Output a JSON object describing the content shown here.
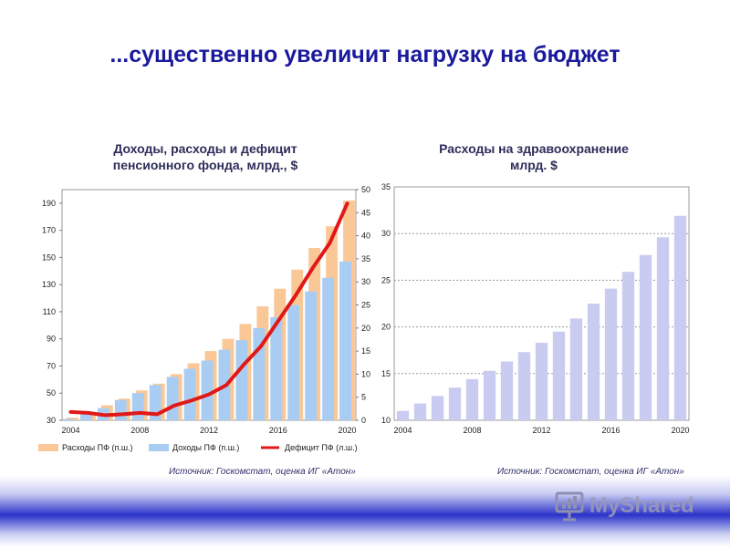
{
  "slide_title": "...существенно увеличит нагрузку на бюджет",
  "left_title_line1": "Доходы, расходы и дефицит",
  "left_title_line2": "пенсионного фонда, млрд., $",
  "right_title_line1": "Расходы на здравоохранение",
  "right_title_line2": "млрд.  $",
  "left_source": "Источник: Госкомстат, оценка ИГ «Атон»",
  "right_source": "Источник: Госкомстат, оценка ИГ «Атон»",
  "logo_text": "MyShared",
  "colors": {
    "title": "#1a1a9c",
    "expenses": "#f9c896",
    "income": "#a9cdf2",
    "deficit": "#e01818",
    "health": "#c9cbf0"
  },
  "chart_data": [
    {
      "type": "bar",
      "years": [
        2004,
        2005,
        2006,
        2007,
        2008,
        2009,
        2010,
        2011,
        2012,
        2013,
        2014,
        2015,
        2016,
        2017,
        2018,
        2019,
        2020
      ],
      "x_tick_labels": [
        "2004",
        "2008",
        "2012",
        "2016",
        "2020"
      ],
      "series": [
        {
          "name": "Расходы ПФ (п.ш.)",
          "axis": "left",
          "kind": "bar",
          "values": [
            32,
            36,
            41,
            46,
            52,
            57,
            64,
            72,
            81,
            90,
            101,
            114,
            127,
            141,
            157,
            173,
            192
          ]
        },
        {
          "name": "Доходы ПФ (п.ш.)",
          "axis": "left",
          "kind": "bar",
          "values": [
            31,
            35,
            39,
            45,
            50,
            56,
            62,
            68,
            74,
            82,
            89,
            98,
            106,
            115,
            125,
            135,
            147
          ]
        },
        {
          "name": "Дефицит ПФ (л.ш.)",
          "axis": "right",
          "kind": "line",
          "values": [
            1.8,
            1.6,
            1.1,
            1.3,
            1.6,
            1.3,
            3.2,
            4.3,
            5.6,
            7.6,
            12.0,
            16.0,
            21.5,
            27.0,
            33.0,
            38.5,
            47.0
          ]
        }
      ],
      "y_left": {
        "min": 30,
        "max": 200,
        "ticks": [
          30,
          50,
          70,
          90,
          110,
          130,
          150,
          170,
          190
        ]
      },
      "y_right": {
        "min": 0,
        "max": 50,
        "ticks": [
          0,
          5,
          10,
          15,
          20,
          25,
          30,
          35,
          40,
          45,
          50
        ]
      },
      "legend_position": "bottom"
    },
    {
      "type": "bar",
      "years": [
        2004,
        2005,
        2006,
        2007,
        2008,
        2009,
        2010,
        2011,
        2012,
        2013,
        2014,
        2015,
        2016,
        2017,
        2018,
        2019,
        2020
      ],
      "x_tick_labels": [
        "2004",
        "2008",
        "2012",
        "2016",
        "2020"
      ],
      "series": [
        {
          "name": "",
          "values": [
            11.0,
            11.8,
            12.6,
            13.5,
            14.4,
            15.3,
            16.3,
            17.3,
            18.3,
            19.5,
            20.9,
            22.5,
            24.1,
            25.9,
            27.7,
            29.6,
            31.9
          ]
        }
      ],
      "y": {
        "min": 10,
        "max": 35,
        "ticks": [
          10,
          15,
          20,
          25,
          30,
          35
        ]
      },
      "grid": true
    }
  ]
}
